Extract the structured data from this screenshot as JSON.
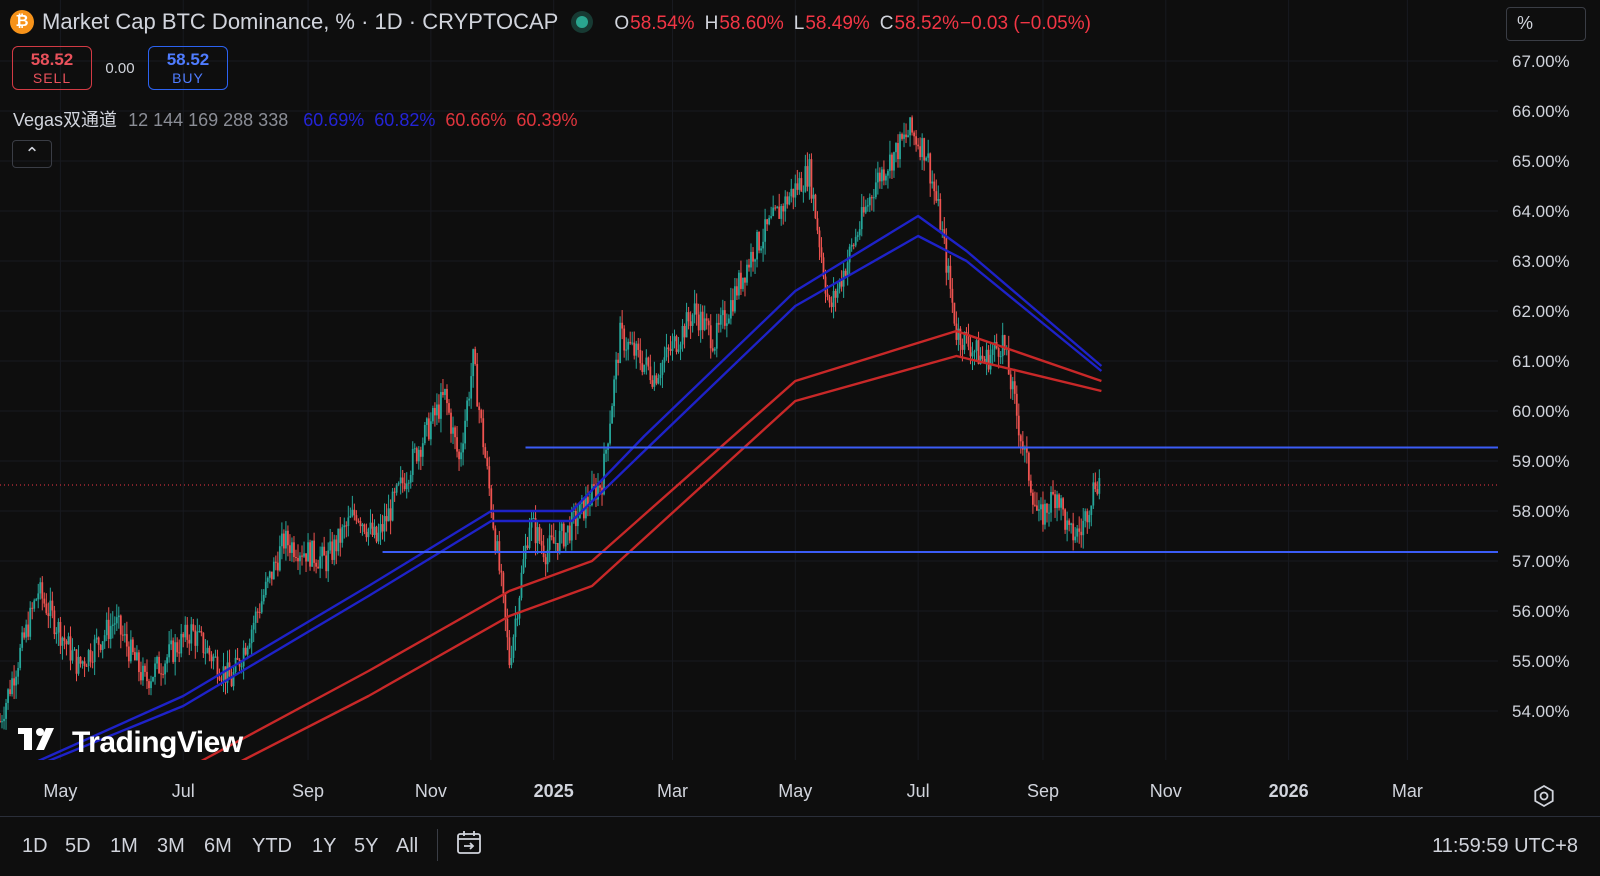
{
  "header": {
    "title": "Market Cap BTC Dominance, % · 1D · CRYPTOCAP",
    "icon": "bitcoin-icon",
    "ohlc": [
      {
        "k": "O",
        "v": "58.54%"
      },
      {
        "k": "H",
        "v": "58.60%"
      },
      {
        "k": "L",
        "v": "58.49%"
      },
      {
        "k": "C",
        "v": "58.52%"
      },
      {
        "k": "",
        "v": "−0.03 (−0.05%)"
      }
    ]
  },
  "trade": {
    "sell_price": "58.52",
    "sell_label": "SELL",
    "spread": "0.00",
    "buy_price": "58.52",
    "buy_label": "BUY"
  },
  "indicator": {
    "name": "Vegas双通道",
    "params": "12 144 169 288 338",
    "values": [
      {
        "v": "60.69%",
        "color": "#2424d6"
      },
      {
        "v": "60.82%",
        "color": "#2424d6"
      },
      {
        "v": "60.66%",
        "color": "#e0353d"
      },
      {
        "v": "60.39%",
        "color": "#e0353d"
      }
    ]
  },
  "collapse_glyph": "⌃",
  "unit_label": "%",
  "watermark": "TradingView",
  "bottom_bar": {
    "ranges": [
      "1D",
      "5D",
      "1M",
      "3M",
      "6M",
      "YTD",
      "1Y",
      "5Y",
      "All"
    ],
    "clock": "11:59:59 UTC+8"
  },
  "colors": {
    "background": "#0e0e0e",
    "up": "#26a69a",
    "down": "#ef5350",
    "ema_blue": "#1e22c8",
    "ema_red": "#c82828",
    "hline": "#3b5cf5",
    "last_price": "#f23645"
  },
  "chart_data": {
    "type": "candlestick",
    "y_ticks": [
      "67.00%",
      "66.00%",
      "65.00%",
      "64.00%",
      "63.00%",
      "62.00%",
      "61.00%",
      "60.00%",
      "59.00%",
      "58.00%",
      "57.00%",
      "56.00%",
      "55.00%",
      "54.00%"
    ],
    "y_range": [
      53,
      68
    ],
    "x_ticks": [
      {
        "label": "May",
        "bold": false
      },
      {
        "label": "Jul",
        "bold": false
      },
      {
        "label": "Sep",
        "bold": false
      },
      {
        "label": "Nov",
        "bold": false
      },
      {
        "label": "2025",
        "bold": true
      },
      {
        "label": "Mar",
        "bold": false
      },
      {
        "label": "May",
        "bold": false
      },
      {
        "label": "Jul",
        "bold": false
      },
      {
        "label": "Sep",
        "bold": false
      },
      {
        "label": "Nov",
        "bold": false
      },
      {
        "label": "2026",
        "bold": true
      },
      {
        "label": "Mar",
        "bold": false
      }
    ],
    "x_range": [
      "2024-04-01",
      "2026-04-15"
    ],
    "price_path": [
      [
        "2024-04-01",
        53.8
      ],
      [
        "2024-04-20",
        56.4
      ],
      [
        "2024-05-10",
        54.9
      ],
      [
        "2024-05-28",
        55.8
      ],
      [
        "2024-06-12",
        54.6
      ],
      [
        "2024-07-05",
        55.6
      ],
      [
        "2024-07-25",
        54.6
      ],
      [
        "2024-08-20",
        57.4
      ],
      [
        "2024-09-10",
        57.0
      ],
      [
        "2024-09-25",
        58.0
      ],
      [
        "2024-10-05",
        57.4
      ],
      [
        "2024-10-25",
        59.2
      ],
      [
        "2024-11-08",
        60.3
      ],
      [
        "2024-11-15",
        59.0
      ],
      [
        "2024-11-22",
        61.0
      ],
      [
        "2024-12-06",
        56.5
      ],
      [
        "2024-12-10",
        55.0
      ],
      [
        "2024-12-20",
        57.8
      ],
      [
        "2024-12-28",
        57.2
      ],
      [
        "2025-01-08",
        57.6
      ],
      [
        "2025-01-25",
        58.6
      ],
      [
        "2025-02-03",
        61.5
      ],
      [
        "2025-02-20",
        60.7
      ],
      [
        "2025-03-12",
        62.0
      ],
      [
        "2025-03-22",
        61.4
      ],
      [
        "2025-04-10",
        63.2
      ],
      [
        "2025-04-28",
        64.3
      ],
      [
        "2025-05-08",
        64.8
      ],
      [
        "2025-05-18",
        62.0
      ],
      [
        "2025-06-10",
        64.6
      ],
      [
        "2025-06-27",
        65.6
      ],
      [
        "2025-07-05",
        65.2
      ],
      [
        "2025-07-12",
        63.8
      ],
      [
        "2025-07-20",
        61.6
      ],
      [
        "2025-08-03",
        61.0
      ],
      [
        "2025-08-12",
        61.4
      ],
      [
        "2025-08-22",
        59.3
      ],
      [
        "2025-08-30",
        57.8
      ],
      [
        "2025-09-08",
        58.4
      ],
      [
        "2025-09-14",
        57.5
      ],
      [
        "2025-09-20",
        57.6
      ],
      [
        "2025-09-27",
        58.6
      ]
    ],
    "last_date": "2025-09-29",
    "ema_series": [
      {
        "name": "EMA 144",
        "color": "#1e22c8",
        "points": [
          [
            "2024-04-20",
            53.0
          ],
          [
            "2024-07-01",
            54.3
          ],
          [
            "2024-10-01",
            56.5
          ],
          [
            "2024-12-01",
            58.0
          ],
          [
            "2025-01-10",
            58.0
          ],
          [
            "2025-02-15",
            59.5
          ],
          [
            "2025-05-01",
            62.4
          ],
          [
            "2025-07-01",
            63.9
          ],
          [
            "2025-07-25",
            63.2
          ],
          [
            "2025-09-30",
            60.9
          ]
        ]
      },
      {
        "name": "EMA 169",
        "color": "#1e22c8",
        "points": [
          [
            "2024-04-25",
            53.0
          ],
          [
            "2024-07-01",
            54.1
          ],
          [
            "2024-10-01",
            56.3
          ],
          [
            "2024-12-01",
            57.8
          ],
          [
            "2025-01-10",
            57.8
          ],
          [
            "2025-02-15",
            59.2
          ],
          [
            "2025-05-01",
            62.1
          ],
          [
            "2025-07-01",
            63.5
          ],
          [
            "2025-07-25",
            63.0
          ],
          [
            "2025-09-30",
            60.8
          ]
        ]
      },
      {
        "name": "EMA 288",
        "color": "#c82828",
        "points": [
          [
            "2024-07-10",
            53.0
          ],
          [
            "2024-10-01",
            54.8
          ],
          [
            "2024-12-10",
            56.4
          ],
          [
            "2025-01-20",
            57.0
          ],
          [
            "2025-05-01",
            60.6
          ],
          [
            "2025-07-20",
            61.6
          ],
          [
            "2025-09-30",
            60.6
          ]
        ]
      },
      {
        "name": "EMA 338",
        "color": "#c82828",
        "points": [
          [
            "2024-07-30",
            53.0
          ],
          [
            "2024-10-01",
            54.3
          ],
          [
            "2024-12-10",
            55.9
          ],
          [
            "2025-01-20",
            56.5
          ],
          [
            "2025-05-01",
            60.2
          ],
          [
            "2025-07-20",
            61.1
          ],
          [
            "2025-09-30",
            60.4
          ]
        ]
      }
    ],
    "hlines": [
      {
        "value": 59.27,
        "label": "59.27%",
        "start": "2024-12-18"
      },
      {
        "value": 57.18,
        "label": "57.18%",
        "start": "2024-10-08"
      }
    ],
    "last_price": {
      "value": 58.52,
      "label": "58.52%"
    }
  }
}
